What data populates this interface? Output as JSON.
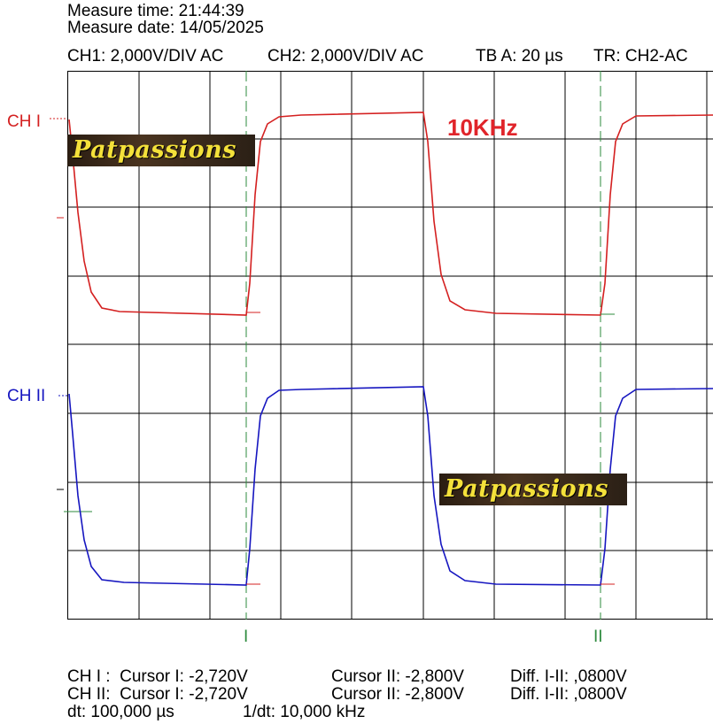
{
  "header": {
    "measure_time": "Measure time: 21:44:39",
    "measure_date": "Measure date: 14/05/2025",
    "settings": [
      "CH1: 2,000V/DIV AC",
      "CH2: 2,000V/DIV AC",
      "TB A: 20 µs",
      "TR: CH2-AC"
    ]
  },
  "channels": [
    "CH I",
    "CH II"
  ],
  "annotation": "10KHz",
  "watermarks": [
    "Patpassions",
    "Patpassions"
  ],
  "cursors": [
    "I",
    "II"
  ],
  "readout": {
    "rows": [
      [
        "CH I :  Cursor I: -2,720V",
        "Cursor II: -2,800V",
        "Diff. I-II: ,0800V"
      ],
      [
        "CH II:  Cursor I: -2,720V",
        "Cursor II: -2,800V",
        "Diff. I-II: ,0800V"
      ]
    ],
    "footer": [
      "dt: 100,000 µs",
      "1/dt: 10,000 kHz"
    ]
  }
}
